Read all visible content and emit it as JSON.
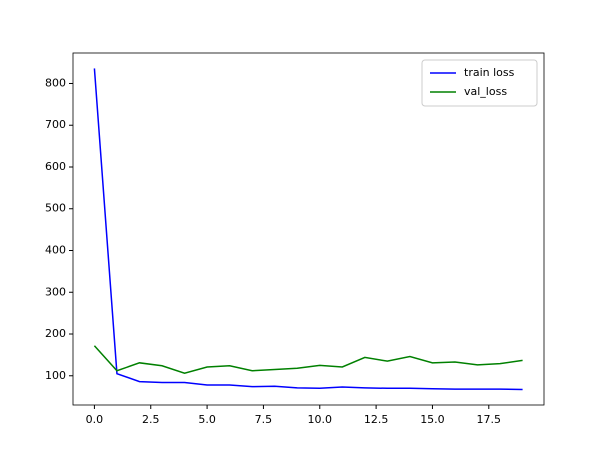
{
  "chart_data": {
    "type": "line",
    "x": [
      0,
      1,
      2,
      3,
      4,
      5,
      6,
      7,
      8,
      9,
      10,
      11,
      12,
      13,
      14,
      15,
      16,
      17,
      18,
      19
    ],
    "series": [
      {
        "name": "train loss",
        "color": "#0000ff",
        "values": [
          836,
          105,
          86,
          84,
          84,
          78,
          78,
          74,
          75,
          71,
          70,
          73,
          71,
          70,
          70,
          69,
          68,
          68,
          68,
          67
        ]
      },
      {
        "name": "val_loss",
        "color": "#008000",
        "values": [
          172,
          112,
          131,
          124,
          106,
          121,
          124,
          112,
          115,
          118,
          125,
          121,
          144,
          135,
          146,
          131,
          133,
          126,
          129,
          137
        ]
      }
    ],
    "xlim": [
      -0.95,
      19.95
    ],
    "xticks": [
      {
        "value": 0,
        "label": "0.0"
      },
      {
        "value": 2.5,
        "label": "2.5"
      },
      {
        "value": 5,
        "label": "5.0"
      },
      {
        "value": 7.5,
        "label": "7.5"
      },
      {
        "value": 10,
        "label": "10.0"
      },
      {
        "value": 12.5,
        "label": "12.5"
      },
      {
        "value": 15,
        "label": "15.0"
      },
      {
        "value": 17.5,
        "label": "17.5"
      }
    ],
    "ylim": [
      30,
      873
    ],
    "yticks": [
      100,
      200,
      300,
      400,
      500,
      600,
      700,
      800
    ],
    "legend": "upper right"
  }
}
